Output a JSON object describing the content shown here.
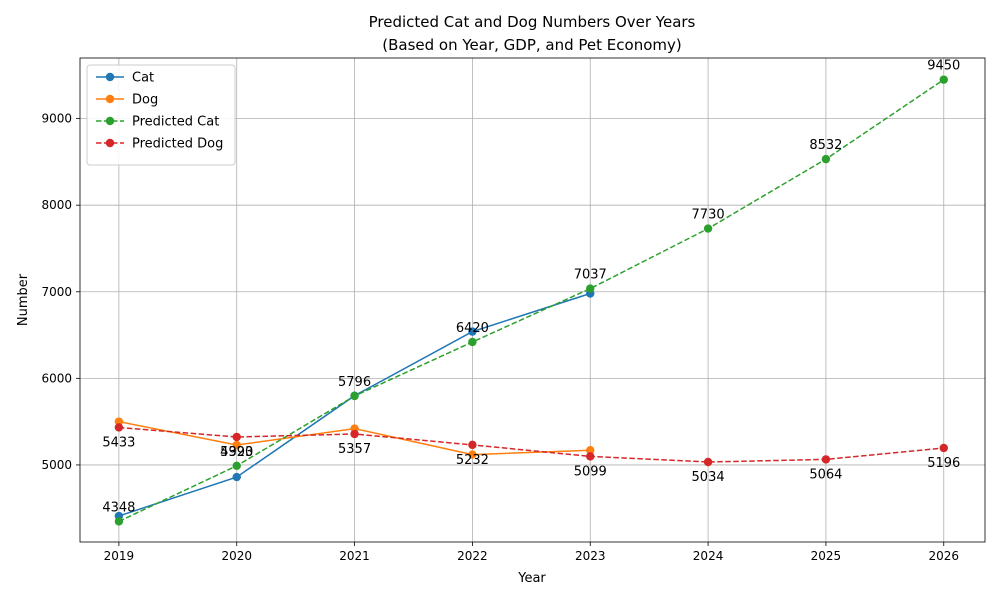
{
  "chart_data": {
    "type": "line",
    "title": "Predicted Cat and Dog Numbers Over Years",
    "subtitle": "(Based on Year, GDP, and Pet Economy)",
    "xlabel": "Year",
    "ylabel": "Number",
    "x": [
      2019,
      2020,
      2021,
      2022,
      2023,
      2024,
      2025,
      2026
    ],
    "xlim": [
      2018.67,
      2026.35
    ],
    "ylim": [
      4110,
      9700
    ],
    "yticks": [
      5000,
      6000,
      7000,
      8000,
      9000
    ],
    "grid": true,
    "legend_position": "top-left",
    "series": [
      {
        "name": "Cat",
        "color": "#1f77b4",
        "style": "solid",
        "x": [
          2019,
          2020,
          2021,
          2022,
          2023
        ],
        "values": [
          4410,
          4860,
          5800,
          6540,
          6980
        ],
        "labels": []
      },
      {
        "name": "Dog",
        "color": "#ff7f0e",
        "style": "solid",
        "x": [
          2019,
          2020,
          2021,
          2022,
          2023
        ],
        "values": [
          5500,
          5230,
          5420,
          5120,
          5170
        ],
        "labels": []
      },
      {
        "name": "Predicted Cat",
        "color": "#2ca02c",
        "style": "dashed",
        "x": [
          2019,
          2020,
          2021,
          2022,
          2023,
          2024,
          2025,
          2026
        ],
        "values": [
          4348,
          4990,
          5796,
          6420,
          7037,
          7730,
          8532,
          9450
        ],
        "labels": [
          "4348",
          "4990",
          "5796",
          "6420",
          "7037",
          "7730",
          "8532",
          "9450"
        ],
        "label_side": "above"
      },
      {
        "name": "Predicted Dog",
        "color": "#d62728",
        "style": "dashed",
        "x": [
          2019,
          2020,
          2021,
          2022,
          2023,
          2024,
          2025,
          2026
        ],
        "values": [
          5433,
          5323,
          5357,
          5232,
          5099,
          5034,
          5064,
          5196
        ],
        "labels": [
          "5433",
          "5323",
          "5357",
          "5232",
          "5099",
          "5034",
          "5064",
          "5196"
        ],
        "label_side": "below"
      }
    ]
  }
}
